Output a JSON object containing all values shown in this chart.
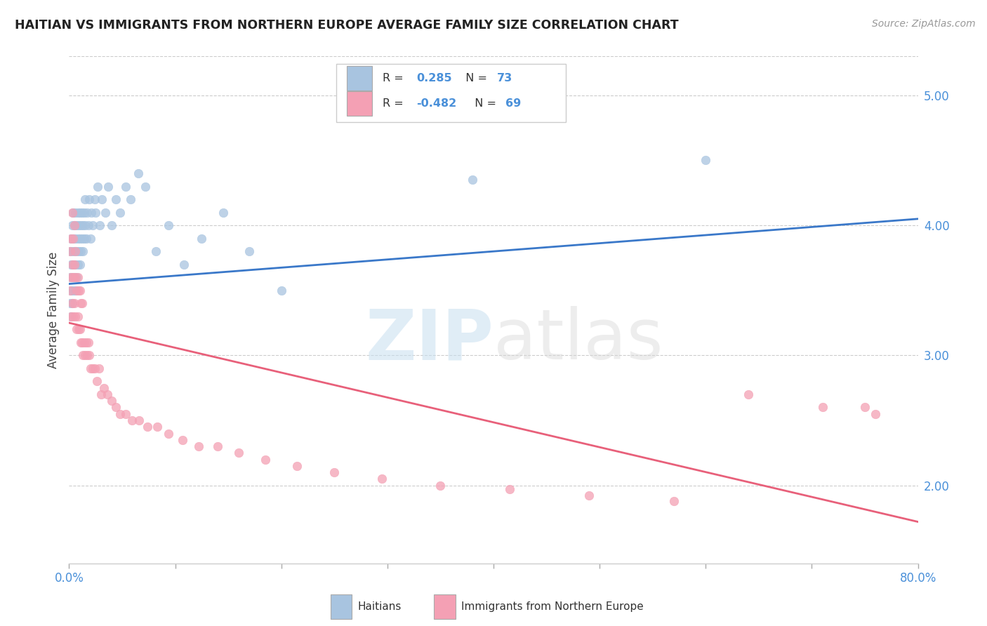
{
  "title": "HAITIAN VS IMMIGRANTS FROM NORTHERN EUROPE AVERAGE FAMILY SIZE CORRELATION CHART",
  "source": "Source: ZipAtlas.com",
  "ylabel": "Average Family Size",
  "y_ticks_right": [
    2.0,
    3.0,
    4.0,
    5.0
  ],
  "xlim": [
    0.0,
    0.8
  ],
  "ylim": [
    1.4,
    5.3
  ],
  "watermark_zip": "ZIP",
  "watermark_atlas": "atlas",
  "haitian_color": "#a8c4e0",
  "immigrant_color": "#f4a0b4",
  "haitian_line_color": "#3a78c9",
  "immigrant_line_color": "#e8607a",
  "haitian_line": [
    3.55,
    4.05
  ],
  "immigrant_line": [
    3.25,
    1.72
  ],
  "haitian_scatter_x": [
    0.001,
    0.001,
    0.001,
    0.002,
    0.002,
    0.002,
    0.002,
    0.003,
    0.003,
    0.003,
    0.003,
    0.004,
    0.004,
    0.004,
    0.004,
    0.005,
    0.005,
    0.005,
    0.006,
    0.006,
    0.006,
    0.006,
    0.007,
    0.007,
    0.007,
    0.008,
    0.008,
    0.008,
    0.009,
    0.009,
    0.01,
    0.01,
    0.01,
    0.011,
    0.011,
    0.012,
    0.012,
    0.013,
    0.013,
    0.014,
    0.014,
    0.015,
    0.015,
    0.016,
    0.017,
    0.018,
    0.019,
    0.02,
    0.021,
    0.022,
    0.024,
    0.025,
    0.027,
    0.029,
    0.031,
    0.034,
    0.037,
    0.04,
    0.044,
    0.048,
    0.053,
    0.058,
    0.065,
    0.072,
    0.082,
    0.094,
    0.108,
    0.125,
    0.145,
    0.17,
    0.2,
    0.38,
    0.6
  ],
  "haitian_scatter_y": [
    3.4,
    3.6,
    3.8,
    3.3,
    3.5,
    3.7,
    3.9,
    3.4,
    3.6,
    3.8,
    4.0,
    3.5,
    3.7,
    3.9,
    4.1,
    3.6,
    3.8,
    4.0,
    3.5,
    3.7,
    3.9,
    4.1,
    3.6,
    3.8,
    4.0,
    3.7,
    3.9,
    4.1,
    3.8,
    4.0,
    3.7,
    3.9,
    4.1,
    3.8,
    4.0,
    3.9,
    4.1,
    3.8,
    4.0,
    3.9,
    4.1,
    4.0,
    4.2,
    3.9,
    4.1,
    4.0,
    4.2,
    3.9,
    4.1,
    4.0,
    4.2,
    4.1,
    4.3,
    4.0,
    4.2,
    4.1,
    4.3,
    4.0,
    4.2,
    4.1,
    4.3,
    4.2,
    4.4,
    4.3,
    3.8,
    4.0,
    3.7,
    3.9,
    4.1,
    3.8,
    3.5,
    4.35,
    4.5
  ],
  "immigrant_scatter_x": [
    0.001,
    0.001,
    0.002,
    0.002,
    0.002,
    0.003,
    0.003,
    0.003,
    0.004,
    0.004,
    0.004,
    0.005,
    0.005,
    0.005,
    0.006,
    0.006,
    0.006,
    0.007,
    0.007,
    0.008,
    0.008,
    0.009,
    0.009,
    0.01,
    0.01,
    0.011,
    0.011,
    0.012,
    0.012,
    0.013,
    0.014,
    0.015,
    0.016,
    0.017,
    0.018,
    0.019,
    0.02,
    0.022,
    0.024,
    0.026,
    0.028,
    0.03,
    0.033,
    0.036,
    0.04,
    0.044,
    0.048,
    0.053,
    0.059,
    0.066,
    0.074,
    0.083,
    0.094,
    0.107,
    0.122,
    0.14,
    0.16,
    0.185,
    0.215,
    0.25,
    0.295,
    0.35,
    0.415,
    0.49,
    0.57,
    0.64,
    0.71,
    0.76,
    0.75
  ],
  "immigrant_scatter_y": [
    3.5,
    3.8,
    3.3,
    3.6,
    3.9,
    3.4,
    3.7,
    4.1,
    3.3,
    3.6,
    3.9,
    3.4,
    3.7,
    4.0,
    3.3,
    3.6,
    3.8,
    3.2,
    3.5,
    3.3,
    3.6,
    3.2,
    3.5,
    3.2,
    3.5,
    3.1,
    3.4,
    3.1,
    3.4,
    3.0,
    3.1,
    3.0,
    3.1,
    3.0,
    3.1,
    3.0,
    2.9,
    2.9,
    2.9,
    2.8,
    2.9,
    2.7,
    2.75,
    2.7,
    2.65,
    2.6,
    2.55,
    2.55,
    2.5,
    2.5,
    2.45,
    2.45,
    2.4,
    2.35,
    2.3,
    2.3,
    2.25,
    2.2,
    2.15,
    2.1,
    2.05,
    2.0,
    1.97,
    1.92,
    1.88,
    2.7,
    2.6,
    2.55,
    2.6
  ]
}
